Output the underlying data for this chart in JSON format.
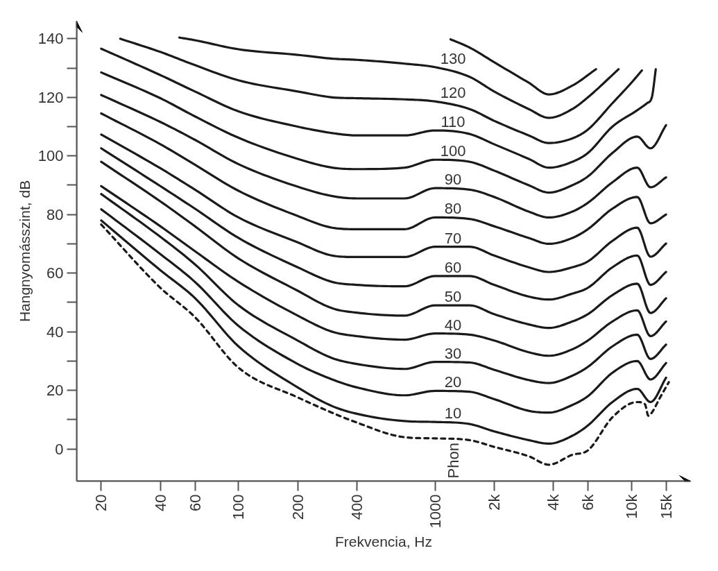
{
  "chart_data": {
    "type": "line",
    "xlabel": "Frekvencia, Hz",
    "ylabel": "Hangnyomásszint, dB",
    "log": "x",
    "xlim": [
      15,
      20000
    ],
    "ylim": [
      -11,
      146
    ],
    "xticks": [
      20,
      40,
      60,
      100,
      200,
      400,
      1000,
      {
        "value": 2000,
        "label": "2k"
      },
      {
        "value": 4000,
        "label": "4k"
      },
      {
        "value": 6000,
        "label": "6k"
      },
      {
        "value": 10000,
        "label": "10k"
      },
      {
        "value": 15000,
        "label": "15k"
      }
    ],
    "yticks": [
      0,
      {
        "value": 10,
        "label": null
      },
      20,
      {
        "value": 30,
        "label": null
      },
      40,
      {
        "value": 50,
        "label": null
      },
      60,
      {
        "value": 70,
        "label": null
      },
      80,
      {
        "value": 90,
        "label": null
      },
      100,
      {
        "value": 110,
        "label": null
      },
      120,
      {
        "value": 130,
        "label": null
      },
      140
    ],
    "grid": false,
    "annotations": [
      "Phon"
    ],
    "series": [
      {
        "name": null,
        "color": "#1a1a1a",
        "line_style": "dashed",
        "x": [
          20,
          40,
          60,
          100,
          200,
          400,
          700,
          1000,
          1500,
          2000,
          3000,
          3800,
          5000,
          6000,
          8000,
          10700,
          11700,
          12200,
          12700,
          14000,
          15500
        ],
        "values": [
          76.6,
          55,
          45,
          27.7,
          17.6,
          9,
          4,
          3.6,
          3,
          0.7,
          -2.5,
          -5.4,
          -2,
          -0.5,
          10.8,
          16,
          15.3,
          11.3,
          12.4,
          17.6,
          22.8
        ]
      },
      {
        "name": "10",
        "color": "#1a1a1a",
        "line_style": "solid",
        "x": [
          20,
          40,
          60,
          100,
          200,
          300,
          400,
          700,
          1000,
          1500,
          2000,
          3000,
          3800,
          5000,
          6000,
          8000,
          10700,
          12500,
          15000
        ],
        "values": [
          78,
          61,
          51.5,
          35,
          21,
          14.6,
          12,
          9.5,
          9.2,
          8.5,
          6,
          3,
          1.8,
          4.5,
          8,
          16,
          20.5,
          16,
          24.3
        ]
      },
      {
        "name": "20",
        "color": "#1a1a1a",
        "line_style": "solid",
        "x": [
          20,
          40,
          60,
          100,
          200,
          300,
          400,
          700,
          1000,
          1500,
          2000,
          3000,
          3800,
          5000,
          6000,
          8000,
          10700,
          12500,
          15000
        ],
        "values": [
          81.8,
          66.5,
          57,
          42,
          29,
          23.7,
          21,
          18.3,
          19.8,
          19.5,
          17,
          13,
          12.4,
          15,
          18,
          26,
          30,
          23.7,
          29.3
        ]
      },
      {
        "name": "30",
        "color": "#1a1a1a",
        "line_style": "solid",
        "x": [
          20,
          40,
          60,
          100,
          200,
          300,
          400,
          700,
          1000,
          1500,
          2000,
          3000,
          3800,
          5000,
          6000,
          8000,
          10700,
          12500,
          15000
        ],
        "values": [
          87,
          72.4,
          63,
          49,
          37,
          31,
          29,
          27.3,
          29.7,
          29.5,
          27,
          23.5,
          22.5,
          25,
          28,
          35,
          39,
          30.7,
          35.6
        ]
      },
      {
        "name": "40",
        "color": "#1a1a1a",
        "line_style": "solid",
        "x": [
          20,
          40,
          60,
          100,
          200,
          300,
          400,
          700,
          1000,
          1500,
          2000,
          3000,
          3800,
          5000,
          6000,
          8000,
          10700,
          12500,
          15000
        ],
        "values": [
          89.7,
          76,
          67.5,
          57,
          45.5,
          40,
          38.5,
          37.3,
          39.4,
          39,
          37,
          33,
          31.8,
          34,
          37,
          43.5,
          47.3,
          38.5,
          43.5
        ]
      },
      {
        "name": "50",
        "color": "#1a1a1a",
        "line_style": "solid",
        "x": [
          20,
          40,
          60,
          100,
          200,
          300,
          400,
          700,
          1000,
          1500,
          2000,
          3000,
          3800,
          5000,
          6000,
          8000,
          10700,
          12500,
          15000
        ],
        "values": [
          98,
          84.5,
          76,
          65,
          54,
          48,
          46.5,
          45.5,
          49,
          49,
          46,
          42.5,
          41.3,
          43.5,
          46,
          52.5,
          56.4,
          46.4,
          51.4
        ]
      },
      {
        "name": "60",
        "color": "#1a1a1a",
        "line_style": "solid",
        "x": [
          20,
          40,
          60,
          100,
          200,
          300,
          400,
          700,
          1000,
          1500,
          2000,
          3000,
          3800,
          5000,
          6000,
          8000,
          10700,
          12500,
          15000
        ],
        "values": [
          102.6,
          89.7,
          82,
          72,
          62,
          57,
          56,
          55.5,
          59,
          59,
          56,
          52,
          51,
          53,
          55,
          62,
          66,
          56,
          60.4
        ]
      },
      {
        "name": "70",
        "color": "#1a1a1a",
        "line_style": "solid",
        "x": [
          20,
          40,
          60,
          100,
          200,
          300,
          400,
          700,
          1000,
          1500,
          2000,
          3000,
          3800,
          5000,
          6000,
          8000,
          10700,
          12500,
          15000
        ],
        "values": [
          107.3,
          95.8,
          88.5,
          79,
          70.5,
          66,
          65.5,
          65.5,
          69,
          69,
          66,
          62,
          60.4,
          62,
          64,
          71,
          75.5,
          65.6,
          70.1
        ]
      },
      {
        "name": "80",
        "color": "#1a1a1a",
        "line_style": "solid",
        "x": [
          20,
          40,
          60,
          100,
          200,
          300,
          400,
          700,
          1000,
          1500,
          2000,
          3000,
          3800,
          5000,
          6000,
          8000,
          10700,
          12500,
          15000
        ],
        "values": [
          114.5,
          104,
          97,
          88.1,
          79.5,
          75.5,
          75,
          75,
          79,
          78.5,
          76,
          72,
          70,
          72,
          75,
          82,
          86,
          77,
          80
        ]
      },
      {
        "name": "90",
        "color": "#1a1a1a",
        "line_style": "solid",
        "x": [
          20,
          40,
          60,
          100,
          200,
          300,
          400,
          700,
          1000,
          1500,
          2000,
          3000,
          3800,
          5000,
          6000,
          8000,
          10700,
          12500,
          15000
        ],
        "values": [
          120.8,
          111.6,
          105.5,
          97.2,
          89.5,
          86.3,
          85.5,
          85.5,
          89,
          88.5,
          86,
          81,
          79,
          81,
          84,
          91,
          96,
          89.3,
          92.7
        ]
      },
      {
        "name": "100",
        "color": "#1a1a1a",
        "line_style": "solid",
        "x": [
          20,
          40,
          60,
          100,
          200,
          300,
          400,
          700,
          1000,
          1500,
          2000,
          3000,
          3800,
          5000,
          6000,
          8000,
          10700,
          12500,
          15000
        ],
        "values": [
          128.5,
          119.7,
          113.5,
          106.2,
          99,
          96,
          95.5,
          96,
          98.7,
          98,
          95,
          90,
          87.5,
          90,
          93,
          101,
          106.6,
          102.6,
          110.5
        ]
      },
      {
        "name": "110",
        "color": "#1a1a1a",
        "line_style": "solid",
        "x": [
          20,
          40,
          60,
          100,
          200,
          300,
          400,
          700,
          1000,
          1500,
          2000,
          3000,
          3800,
          5000,
          6000,
          8000,
          10700,
          12000,
          12700,
          13300
        ],
        "values": [
          136.6,
          127.6,
          122,
          115.2,
          110,
          107.8,
          107,
          107,
          108.7,
          107.5,
          104,
          99,
          96,
          98,
          101,
          110,
          115.6,
          118,
          120,
          129.6
        ]
      },
      {
        "name": "120",
        "color": "#1a1a1a",
        "line_style": "solid",
        "x": [
          25,
          40,
          60,
          100,
          200,
          300,
          400,
          700,
          1000,
          1500,
          2000,
          3000,
          3800,
          5000,
          6000,
          8000,
          10000,
          11300
        ],
        "values": [
          140,
          135.5,
          131,
          125.8,
          122,
          120,
          119.7,
          119.3,
          118.6,
          116,
          112,
          107,
          104.4,
          106,
          109,
          118,
          125,
          129.2
        ]
      },
      {
        "name": "130",
        "color": "#1a1a1a",
        "line_style": "solid",
        "x": [
          50,
          60,
          100,
          200,
          300,
          400,
          700,
          1000,
          1500,
          2000,
          3000,
          3800,
          5000,
          6000,
          8600
        ],
        "values": [
          140.4,
          139.5,
          136.4,
          134.5,
          133.2,
          132.8,
          131.5,
          130.3,
          127,
          122,
          116,
          113,
          116,
          120,
          129.6
        ]
      },
      {
        "name": null,
        "color": "#1a1a1a",
        "line_style": "solid",
        "x": [
          1200,
          1500,
          2000,
          3000,
          3800,
          5000,
          6600
        ],
        "values": [
          139.8,
          137,
          132,
          125,
          121,
          124,
          129.6
        ]
      }
    ]
  }
}
